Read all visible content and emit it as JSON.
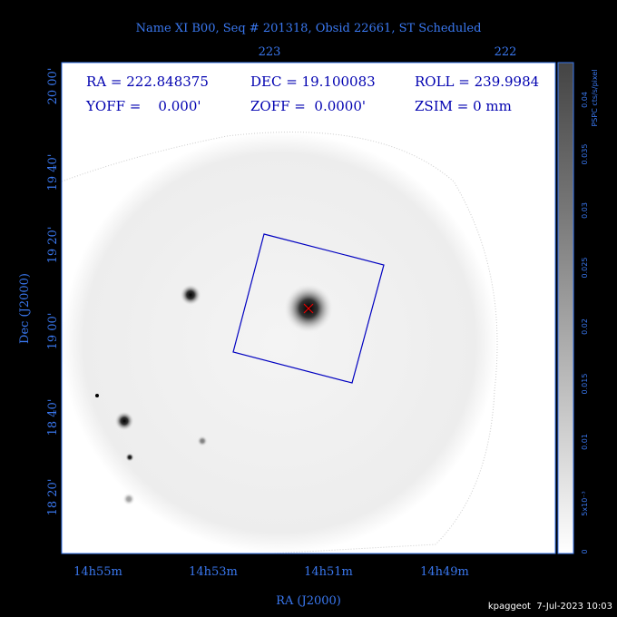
{
  "title": "Name XI B00, Seq # 201318, Obsid 22661, ST Scheduled",
  "top_axis": {
    "labels": [
      "223",
      "222"
    ]
  },
  "bottom_axis": {
    "labels": [
      "14h55m",
      "14h53m",
      "14h51m",
      "14h49m"
    ],
    "title": "RA (J2000)"
  },
  "left_axis": {
    "labels": [
      "20 00'",
      "19 40'",
      "19 20'",
      "19 00'",
      "18 40'",
      "18 20'"
    ],
    "title": "Dec (J2000)"
  },
  "info": {
    "ra": "RA = 222.848375",
    "dec": "DEC = 19.100083",
    "roll": "ROLL = 239.9984",
    "yoff": "YOFF =    0.000'",
    "zoff": "ZOFF =  0.0000'",
    "zsim": "ZSIM = 0 mm"
  },
  "colorbar": {
    "title": "PSPC cts/s/pixel",
    "labels": [
      "0",
      "5x10⁻³",
      "0.01",
      "0.015",
      "0.02",
      "0.025",
      "0.03",
      "0.035",
      "0.04"
    ]
  },
  "footer": "kpaggeot  7-Jul-2023 10:03"
}
